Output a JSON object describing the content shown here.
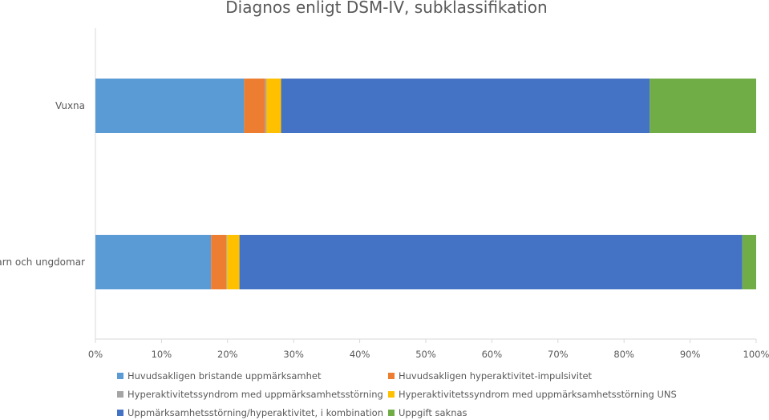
{
  "chart_data": {
    "type": "bar",
    "orientation": "horizontal",
    "stacked": "percent",
    "title": "Diagnos enligt DSM-IV, subklassifikation",
    "categories": [
      "Vuxna",
      "Barn och ungdomar"
    ],
    "series": [
      {
        "name": "Huvudsakligen bristande uppmärksamhet",
        "color": "#5B9BD5",
        "values": [
          22.5,
          17.5
        ]
      },
      {
        "name": "Huvudsakligen hyperaktivitet-impulsivitet",
        "color": "#ED7D31",
        "values": [
          3.2,
          2.3
        ]
      },
      {
        "name": "Hyperaktivitetssyndrom med uppmärksamhetsstörning",
        "color": "#A5A5A5",
        "values": [
          0.2,
          0.1
        ]
      },
      {
        "name": "Hyperaktivitetssyndrom med uppmärksamhetsstörning UNS",
        "color": "#FFC000",
        "values": [
          2.2,
          1.9
        ]
      },
      {
        "name": "Uppmärksamhetsstörning/hyperaktivitet, i kombination",
        "color": "#4472C4",
        "values": [
          55.8,
          76.1
        ]
      },
      {
        "name": "Uppgift saknas",
        "color": "#70AD47",
        "values": [
          16.1,
          2.1
        ]
      }
    ],
    "xlim": [
      0,
      100
    ],
    "xticks": [
      "0%",
      "10%",
      "20%",
      "30%",
      "40%",
      "50%",
      "60%",
      "70%",
      "80%",
      "90%",
      "100%"
    ],
    "grid": false,
    "legend_position": "bottom"
  }
}
